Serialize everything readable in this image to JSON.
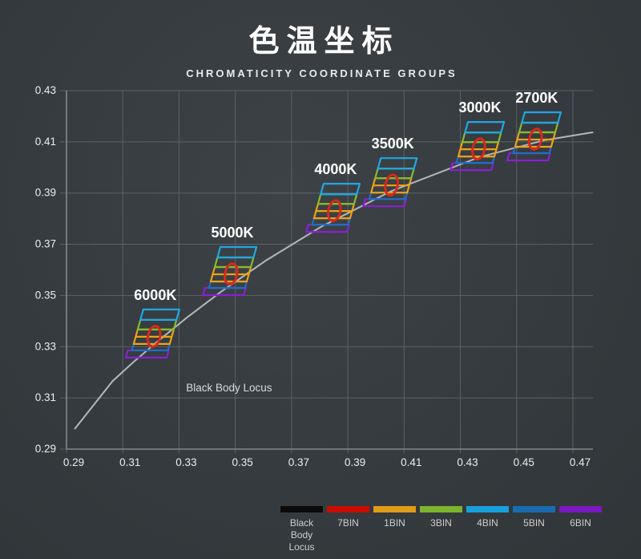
{
  "header": {
    "title": "色温坐标",
    "subtitle": "CHROMATICITY COORDINATE GROUPS"
  },
  "chart_data": {
    "type": "scatter",
    "title": "色温坐标",
    "subtitle": "CHROMATICITY COORDINATE GROUPS",
    "x_ticks": [
      0.29,
      0.31,
      0.33,
      0.35,
      0.37,
      0.39,
      0.41,
      0.43,
      0.45,
      0.47
    ],
    "y_ticks": [
      0.29,
      0.31,
      0.33,
      0.35,
      0.37,
      0.39,
      0.41,
      0.43
    ],
    "x_range": [
      0.29,
      0.4765
    ],
    "y_range": [
      0.29,
      0.43
    ],
    "grid": true,
    "locus": {
      "label": "Black Body Locus",
      "color": "#b4b7b8",
      "points": [
        [
          0.293,
          0.298
        ],
        [
          0.3064,
          0.3166
        ],
        [
          0.3135,
          0.3237
        ],
        [
          0.3221,
          0.3318
        ],
        [
          0.3325,
          0.3411
        ],
        [
          0.3451,
          0.3516
        ],
        [
          0.3608,
          0.3636
        ],
        [
          0.3805,
          0.3768
        ],
        [
          0.4053,
          0.3907
        ],
        [
          0.4369,
          0.4041
        ],
        [
          0.4599,
          0.4106
        ],
        [
          0.477,
          0.4137
        ]
      ]
    },
    "annotation": {
      "text": "Black Body Locus",
      "x": 0.3325,
      "y": 0.3125
    },
    "groups": [
      {
        "label": "6000K",
        "x": 0.321,
        "y": 0.3342
      },
      {
        "label": "5000K",
        "x": 0.3484,
        "y": 0.3586
      },
      {
        "label": "4000K",
        "x": 0.3851,
        "y": 0.3833
      },
      {
        "label": "3500K",
        "x": 0.4054,
        "y": 0.3933
      },
      {
        "label": "3000K",
        "x": 0.4364,
        "y": 0.4074
      },
      {
        "label": "2700K",
        "x": 0.4566,
        "y": 0.4112
      }
    ],
    "bin_band_order_top_to_bottom": [
      "4BIN",
      "3BIN",
      "1BIN",
      "5BIN",
      "6BIN"
    ],
    "ellipse_bin": "7BIN",
    "bins": {
      "7BIN": "#d8281c",
      "1BIN": "#eea117",
      "3BIN": "#84bb2f",
      "4BIN": "#1ea7e6",
      "5BIN": "#1f6fc2",
      "6BIN": "#8a1fd4"
    },
    "legend_position": "bottom",
    "legend": [
      {
        "label": "Black Body Locus",
        "color": "#0b0b0b"
      },
      {
        "label": "7BIN",
        "color": "#ca0c00"
      },
      {
        "label": "1BIN",
        "color": "#df9c16"
      },
      {
        "label": "3BIN",
        "color": "#7cb42d"
      },
      {
        "label": "4BIN",
        "color": "#17a0dc"
      },
      {
        "label": "5BIN",
        "color": "#1a6cb0"
      },
      {
        "label": "6BIN",
        "color": "#7b17c2"
      }
    ],
    "colors": {
      "background": "#373c40",
      "gridline": "#5d6164",
      "axis": "#84888a",
      "tick_text": "#eceeee",
      "group_label": "#ffffff",
      "annotation_text": "#d9dbdc"
    }
  }
}
